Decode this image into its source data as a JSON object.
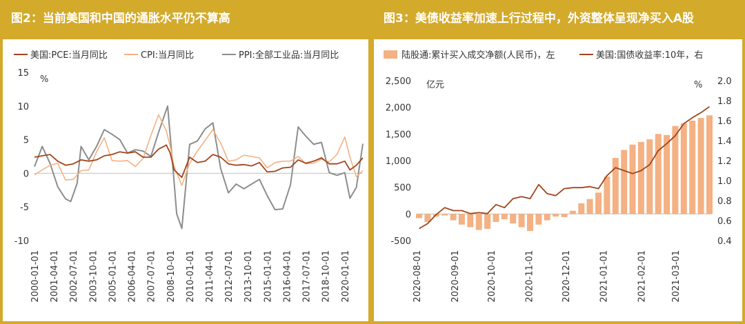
{
  "left": {
    "title": "图2：当前美国和中国的通胀水平仍不算高",
    "legend": [
      "美国:PCE:当月同比",
      "CPI:当月同比",
      "PPI:全部工业品:当月同比"
    ],
    "unit": "%",
    "colors": {
      "pce": "#a0441a",
      "cpi": "#f4b183",
      "ppi": "#8c8c8c"
    }
  },
  "right": {
    "title": "图3：美债收益率加速上行过程中，外资整体呈现净买入A股",
    "legend": [
      "陆股通:累计买入成交净额(人民币)，左",
      "美国:国债收益率:10年，右"
    ],
    "unit_left": "亿元",
    "unit_right": "%",
    "colors": {
      "bar": "#f4b183",
      "line": "#a0441a"
    }
  },
  "chart_data": [
    {
      "type": "line",
      "title": "图2：当前美国和中国的通胀水平仍不算高",
      "ylim": [
        -10,
        15
      ],
      "yticks": [
        -10,
        -5,
        0,
        5,
        10,
        15
      ],
      "yunit": "%",
      "xrange": [
        "2000-01",
        "2021-03"
      ],
      "xticks": [
        "2000-01-01",
        "2001-04-01",
        "2002-07-01",
        "2003-10-01",
        "2005-01-01",
        "2006-04-01",
        "2007-07-01",
        "2008-10-01",
        "2010-01-01",
        "2011-04-01",
        "2012-07-01",
        "2013-10-01",
        "2015-01-01",
        "2016-04-01",
        "2017-07-01",
        "2018-10-01",
        "2020-01-01"
      ],
      "series": [
        {
          "name": "美国:PCE:当月同比",
          "x": [
            "2000-01",
            "2000-07",
            "2001-01",
            "2001-07",
            "2002-01",
            "2002-07",
            "2003-01",
            "2003-07",
            "2004-01",
            "2004-07",
            "2005-01",
            "2005-07",
            "2006-01",
            "2006-07",
            "2007-01",
            "2007-07",
            "2008-01",
            "2008-07",
            "2008-10",
            "2009-01",
            "2009-07",
            "2010-01",
            "2010-07",
            "2011-01",
            "2011-07",
            "2012-01",
            "2012-07",
            "2013-01",
            "2013-07",
            "2014-01",
            "2014-07",
            "2015-01",
            "2015-07",
            "2016-01",
            "2016-07",
            "2017-01",
            "2017-07",
            "2018-01",
            "2018-07",
            "2019-01",
            "2019-07",
            "2020-01",
            "2020-05",
            "2020-10",
            "2021-03"
          ],
          "values": [
            2.4,
            2.6,
            2.8,
            1.8,
            1.2,
            1.4,
            2.0,
            1.8,
            2.0,
            2.6,
            2.8,
            3.2,
            3.0,
            3.2,
            2.4,
            2.4,
            3.6,
            4.2,
            3.0,
            0.5,
            -0.6,
            2.4,
            1.6,
            1.8,
            2.8,
            2.4,
            1.4,
            1.2,
            1.3,
            1.1,
            1.6,
            0.2,
            0.3,
            0.8,
            0.9,
            2.0,
            1.5,
            1.8,
            2.3,
            1.4,
            1.4,
            1.8,
            0.5,
            1.2,
            2.3
          ]
        },
        {
          "name": "CPI:当月同比",
          "x": [
            "2000-01",
            "2000-07",
            "2001-01",
            "2001-07",
            "2002-01",
            "2002-07",
            "2003-01",
            "2003-07",
            "2004-01",
            "2004-07",
            "2005-01",
            "2005-07",
            "2006-01",
            "2006-07",
            "2007-01",
            "2007-07",
            "2008-01",
            "2008-07",
            "2008-10",
            "2009-01",
            "2009-07",
            "2010-01",
            "2010-07",
            "2011-01",
            "2011-07",
            "2012-01",
            "2012-07",
            "2013-01",
            "2013-07",
            "2014-01",
            "2014-07",
            "2015-01",
            "2015-07",
            "2016-01",
            "2016-07",
            "2017-01",
            "2017-07",
            "2018-01",
            "2018-07",
            "2019-01",
            "2019-07",
            "2020-01",
            "2020-05",
            "2020-10",
            "2021-03"
          ],
          "values": [
            -0.2,
            0.5,
            1.2,
            1.5,
            -1.0,
            -0.9,
            0.4,
            0.5,
            3.2,
            5.3,
            1.9,
            1.8,
            1.9,
            1.0,
            2.2,
            5.6,
            8.7,
            6.3,
            4.0,
            1.0,
            -1.8,
            1.5,
            3.3,
            4.9,
            6.5,
            4.5,
            1.8,
            2.0,
            2.7,
            2.5,
            2.3,
            0.8,
            1.6,
            1.8,
            1.8,
            2.5,
            1.4,
            1.5,
            2.1,
            1.7,
            2.8,
            5.4,
            2.4,
            -0.5,
            0.4
          ]
        },
        {
          "name": "PPI:全部工业品:当月同比",
          "x": [
            "2000-01",
            "2000-07",
            "2001-01",
            "2001-07",
            "2002-01",
            "2002-05",
            "2002-10",
            "2003-01",
            "2003-07",
            "2004-01",
            "2004-07",
            "2005-01",
            "2005-07",
            "2006-01",
            "2006-07",
            "2007-01",
            "2007-07",
            "2008-01",
            "2008-08",
            "2008-12",
            "2009-03",
            "2009-07",
            "2010-01",
            "2010-07",
            "2011-01",
            "2011-07",
            "2012-01",
            "2012-07",
            "2013-01",
            "2013-07",
            "2014-01",
            "2014-07",
            "2015-01",
            "2015-07",
            "2016-01",
            "2016-07",
            "2017-01",
            "2017-07",
            "2018-01",
            "2018-07",
            "2019-01",
            "2019-07",
            "2020-01",
            "2020-05",
            "2020-10",
            "2021-03"
          ],
          "values": [
            1.0,
            4.0,
            1.5,
            -2.0,
            -3.8,
            -4.2,
            -1.5,
            4.0,
            2.0,
            4.0,
            6.5,
            5.8,
            5.0,
            3.0,
            3.5,
            3.3,
            2.5,
            6.1,
            10.0,
            1.1,
            -6.0,
            -8.2,
            4.3,
            4.8,
            6.6,
            7.5,
            0.7,
            -2.9,
            -1.6,
            -2.3,
            -1.6,
            -0.9,
            -3.3,
            -5.4,
            -5.3,
            -1.7,
            6.9,
            5.5,
            4.3,
            4.6,
            0.1,
            -0.3,
            0.1,
            -3.7,
            -2.1,
            4.4
          ]
        }
      ]
    },
    {
      "type": "bar",
      "title": "图3：美债收益率加速上行过程中，外资整体呈现净买入A股",
      "ylim_left": [
        -500,
        2500
      ],
      "yticks_left": [
        -500,
        0,
        500,
        1000,
        1500,
        2000,
        2500
      ],
      "ylabel_left": "亿元",
      "ylim_right": [
        0.4,
        2.0
      ],
      "yticks_right": [
        0.4,
        0.6,
        0.8,
        1.0,
        1.2,
        1.4,
        1.6,
        1.8,
        2.0
      ],
      "ylabel_right": "%",
      "xrange": [
        "2020-08-01",
        "2021-03-31"
      ],
      "xticks": [
        "2020-08-01",
        "2020-09-01",
        "2020-10-01",
        "2020-11-01",
        "2020-12-01",
        "2021-01-01",
        "2021-02-01",
        "2021-03-01"
      ],
      "series": [
        {
          "name": "陆股通:累计买入成交净额(人民币)，左",
          "type": "bar",
          "x": [
            "2020-08-03",
            "2020-08-10",
            "2020-08-17",
            "2020-08-24",
            "2020-08-31",
            "2020-09-07",
            "2020-09-14",
            "2020-09-21",
            "2020-09-28",
            "2020-10-05",
            "2020-10-12",
            "2020-10-19",
            "2020-10-26",
            "2020-11-02",
            "2020-11-09",
            "2020-11-16",
            "2020-11-23",
            "2020-11-30",
            "2020-12-07",
            "2020-12-14",
            "2020-12-21",
            "2020-12-28",
            "2021-01-04",
            "2021-01-11",
            "2021-01-18",
            "2021-01-25",
            "2021-02-01",
            "2021-02-08",
            "2021-02-15",
            "2021-02-22",
            "2021-03-01",
            "2021-03-08",
            "2021-03-15",
            "2021-03-22",
            "2021-03-29"
          ],
          "values": [
            -80,
            -150,
            -50,
            -30,
            -120,
            -200,
            -250,
            -300,
            -280,
            -150,
            -100,
            -180,
            -250,
            -320,
            -200,
            -120,
            -50,
            -60,
            60,
            200,
            280,
            400,
            700,
            1050,
            1200,
            1300,
            1350,
            1400,
            1500,
            1480,
            1650,
            1700,
            1750,
            1800,
            1850
          ]
        },
        {
          "name": "美国:国债收益率:10年，右",
          "type": "line",
          "x": [
            "2020-08-03",
            "2020-08-10",
            "2020-08-17",
            "2020-08-24",
            "2020-08-31",
            "2020-09-07",
            "2020-09-14",
            "2020-09-21",
            "2020-09-28",
            "2020-10-05",
            "2020-10-12",
            "2020-10-19",
            "2020-10-26",
            "2020-11-02",
            "2020-11-09",
            "2020-11-16",
            "2020-11-23",
            "2020-11-30",
            "2020-12-07",
            "2020-12-14",
            "2020-12-21",
            "2020-12-28",
            "2021-01-04",
            "2021-01-11",
            "2021-01-18",
            "2021-01-25",
            "2021-02-01",
            "2021-02-08",
            "2021-02-15",
            "2021-02-22",
            "2021-03-01",
            "2021-03-08",
            "2021-03-15",
            "2021-03-22",
            "2021-03-29"
          ],
          "values": [
            0.52,
            0.57,
            0.66,
            0.73,
            0.7,
            0.7,
            0.67,
            0.68,
            0.67,
            0.76,
            0.73,
            0.82,
            0.84,
            0.82,
            0.96,
            0.87,
            0.85,
            0.92,
            0.93,
            0.93,
            0.94,
            0.92,
            1.05,
            1.13,
            1.1,
            1.07,
            1.1,
            1.16,
            1.3,
            1.37,
            1.45,
            1.57,
            1.63,
            1.68,
            1.74
          ]
        }
      ]
    }
  ]
}
